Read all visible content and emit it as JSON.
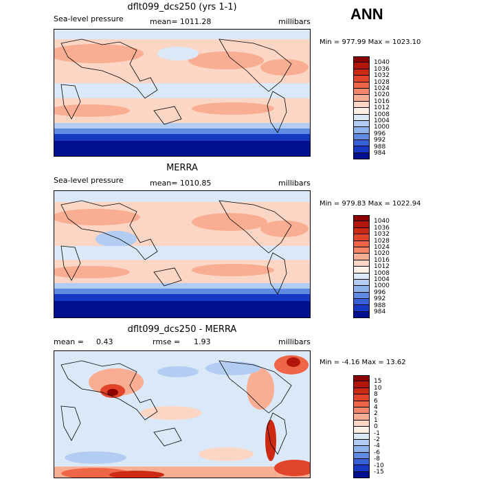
{
  "season": "ANN",
  "panels": [
    {
      "title": "dflt099_dcs250 (yrs 1-1)",
      "variable": "Sea-level pressure",
      "stat": "mean= 1011.28",
      "units": "millibars",
      "minmax": "Min = 977.99 Max = 1023.10",
      "colorbar": {
        "labels": [
          "1040",
          "1036",
          "1032",
          "1028",
          "1024",
          "1020",
          "1016",
          "1012",
          "1008",
          "1004",
          "1000",
          "996",
          "992",
          "988",
          "984"
        ],
        "colors": [
          "#8b0000",
          "#b0170a",
          "#cc2a12",
          "#e0442a",
          "#ef6548",
          "#f6866a",
          "#f9ad92",
          "#fcd6c4",
          "#fef0e6",
          "#dbe8f8",
          "#b3cdf2",
          "#8eb3ec",
          "#5f8be3",
          "#3560d6",
          "#1539c2",
          "#01108e"
        ]
      }
    },
    {
      "title": "MERRA",
      "variable": "Sea-level pressure",
      "stat": "mean= 1010.85",
      "units": "millibars",
      "minmax": "Min = 979.83 Max = 1022.94",
      "colorbar": {
        "labels": [
          "1040",
          "1036",
          "1032",
          "1028",
          "1024",
          "1020",
          "1016",
          "1012",
          "1008",
          "1004",
          "1000",
          "996",
          "992",
          "988",
          "984"
        ],
        "colors": [
          "#8b0000",
          "#b0170a",
          "#cc2a12",
          "#e0442a",
          "#ef6548",
          "#f6866a",
          "#f9ad92",
          "#fcd6c4",
          "#fef0e6",
          "#dbe8f8",
          "#b3cdf2",
          "#8eb3ec",
          "#5f8be3",
          "#3560d6",
          "#1539c2",
          "#01108e"
        ]
      }
    },
    {
      "title": "dflt099_dcs250 - MERRA",
      "variable": "mean =",
      "variable_value": "0.43",
      "stat": "rmse =",
      "stat_value": "1.93",
      "units": "millibars",
      "minmax": "Min =  -4.16 Max =  13.62",
      "colorbar": {
        "labels": [
          "15",
          "10",
          "8",
          "6",
          "4",
          "2",
          "1",
          "0",
          "-1",
          "-2",
          "-4",
          "-6",
          "-8",
          "-10",
          "-15"
        ],
        "colors": [
          "#8b0000",
          "#b0170a",
          "#cc2a12",
          "#e0442a",
          "#ef6548",
          "#f6866a",
          "#f9ad92",
          "#fcd6c4",
          "#fef0e6",
          "#dbe8f8",
          "#b3cdf2",
          "#8eb3ec",
          "#5f8be3",
          "#3560d6",
          "#1539c2",
          "#01108e"
        ]
      }
    }
  ]
}
